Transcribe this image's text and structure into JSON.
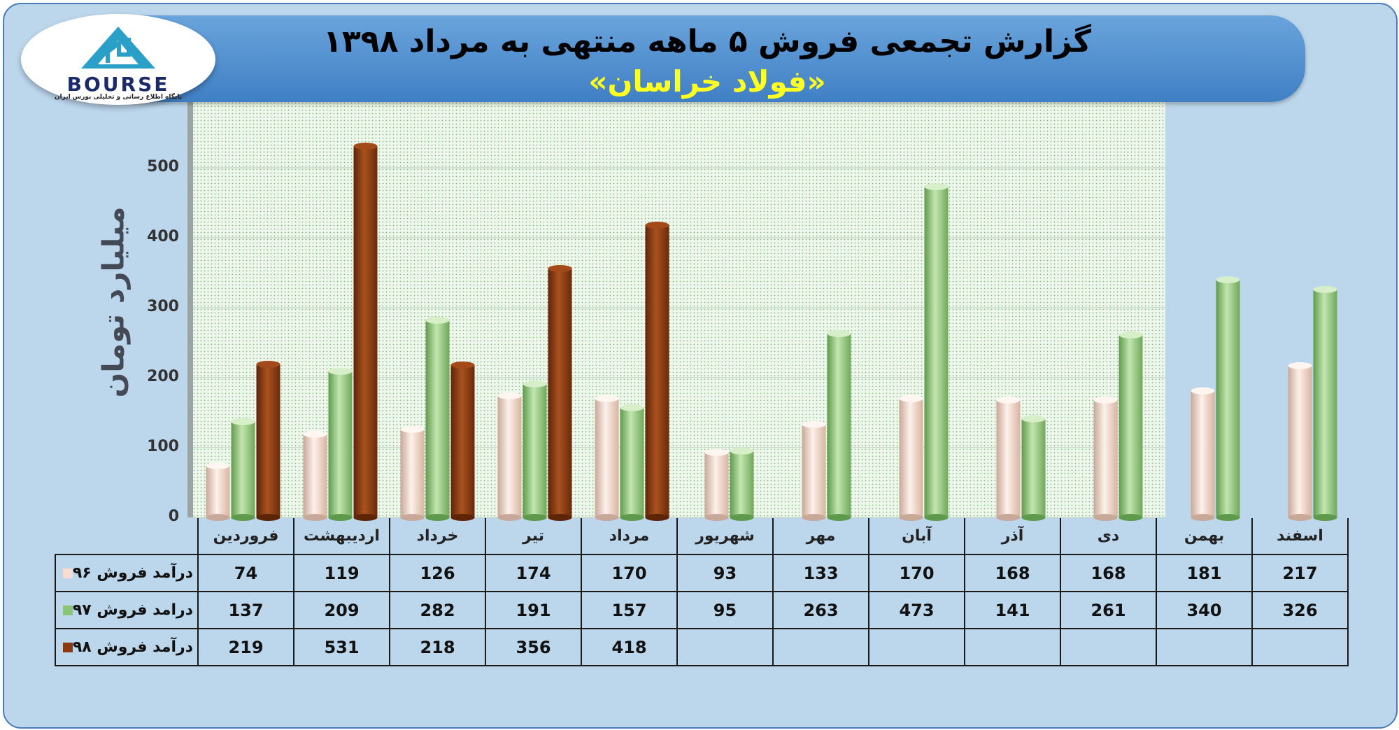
{
  "header": {
    "title": "گزارش تجمعی فروش ۵ ماهه منتهی به مرداد ۱۳۹۸",
    "subtitle": "«فولاد خراسان»"
  },
  "logo": {
    "word": "BOURSE",
    "tagline": "پایگاه اطلاع رسانی و تحلیلی بورس ایران"
  },
  "colors": {
    "series_96": "#f7ddd0",
    "series_97": "#8cc476",
    "series_98": "#8b3a10",
    "header": "#4a8ad0",
    "subtitle": "#ffff20",
    "background": "#bcd6ec"
  },
  "chart_data": {
    "type": "bar",
    "ylabel": "میلیارد تومان",
    "ylim": [
      0,
      600
    ],
    "yticks": [
      "0",
      "100",
      "200",
      "300",
      "400",
      "500",
      "600"
    ],
    "grid": true,
    "legend": "table-left",
    "categories": [
      "فروردین",
      "اردیبهشت",
      "خرداد",
      "تیر",
      "مرداد",
      "شهریور",
      "مهر",
      "آبان",
      "آذر",
      "دی",
      "بهمن",
      "اسفند"
    ],
    "series": [
      {
        "name": "درآمد فروش ۹۶",
        "values": [
          "74",
          "119",
          "126",
          "174",
          "170",
          "93",
          "133",
          "170",
          "168",
          "168",
          "181",
          "217"
        ]
      },
      {
        "name": "درامد فروش ۹۷",
        "values": [
          "137",
          "209",
          "282",
          "191",
          "157",
          "95",
          "263",
          "473",
          "141",
          "261",
          "340",
          "326"
        ]
      },
      {
        "name": "درآمد فروش ۹۸",
        "values": [
          "219",
          "531",
          "218",
          "356",
          "418",
          "",
          "",
          "",
          "",
          "",
          "",
          ""
        ]
      }
    ]
  }
}
